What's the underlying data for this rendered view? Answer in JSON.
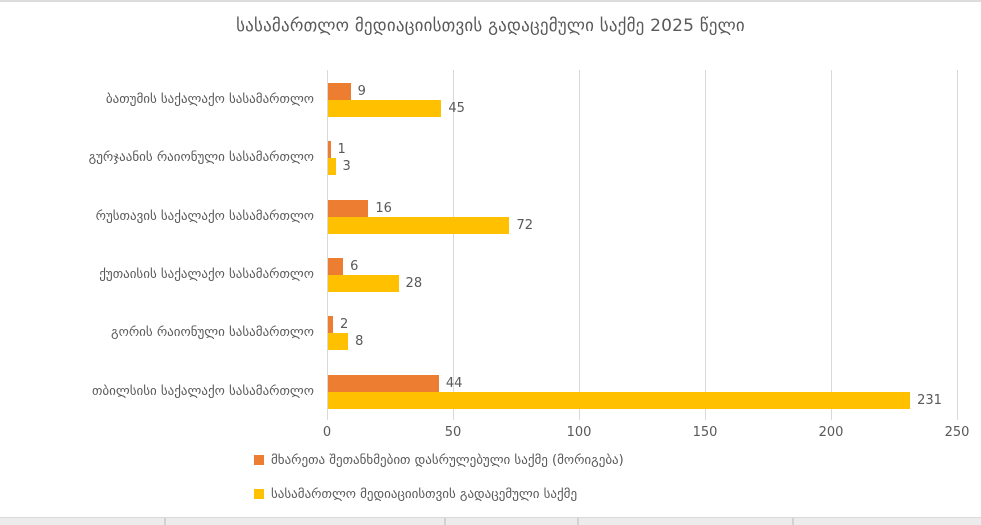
{
  "title": "სასამართლო მედიაციისთვის გადაცემული საქმე 2025 წელი",
  "colors": {
    "settled_series": "#ED7D31",
    "referred_series": "#FFC000",
    "gridline": "#D9D9D9",
    "text": "#595959",
    "background": "#FFFFFF"
  },
  "chart_data": {
    "type": "bar",
    "orientation": "horizontal",
    "title": "სასამართლო მედიაციისთვის გადაცემული საქმე 2025 წელი",
    "categories": [
      "ბათუმის საქალაქო სასამართლო",
      "გურჯაანის რაიონული სასამართლო",
      "რუსთავის საქალაქო სასამართლო",
      "ქუთაისის საქალაქო სასამართლო",
      "გორის რაიონული სასამართლო",
      "თბილსისი საქალაქო სასამართლო"
    ],
    "series": [
      {
        "name": "მხარეთა შეთანხმებით დასრულებული საქმე (მორიგება)",
        "color": "#ED7D31",
        "values": [
          9,
          1,
          16,
          6,
          2,
          44
        ]
      },
      {
        "name": "სასამართლო მედიაციისთვის გადაცემული საქმე",
        "color": "#FFC000",
        "values": [
          45,
          3,
          72,
          28,
          8,
          231
        ]
      }
    ],
    "xlabel": "",
    "ylabel": "",
    "x_axis": {
      "ticks": [
        0,
        50,
        100,
        150,
        200,
        250
      ],
      "min": 0,
      "max": 250
    },
    "grid": true,
    "data_labels": true,
    "legend_position": "bottom"
  }
}
